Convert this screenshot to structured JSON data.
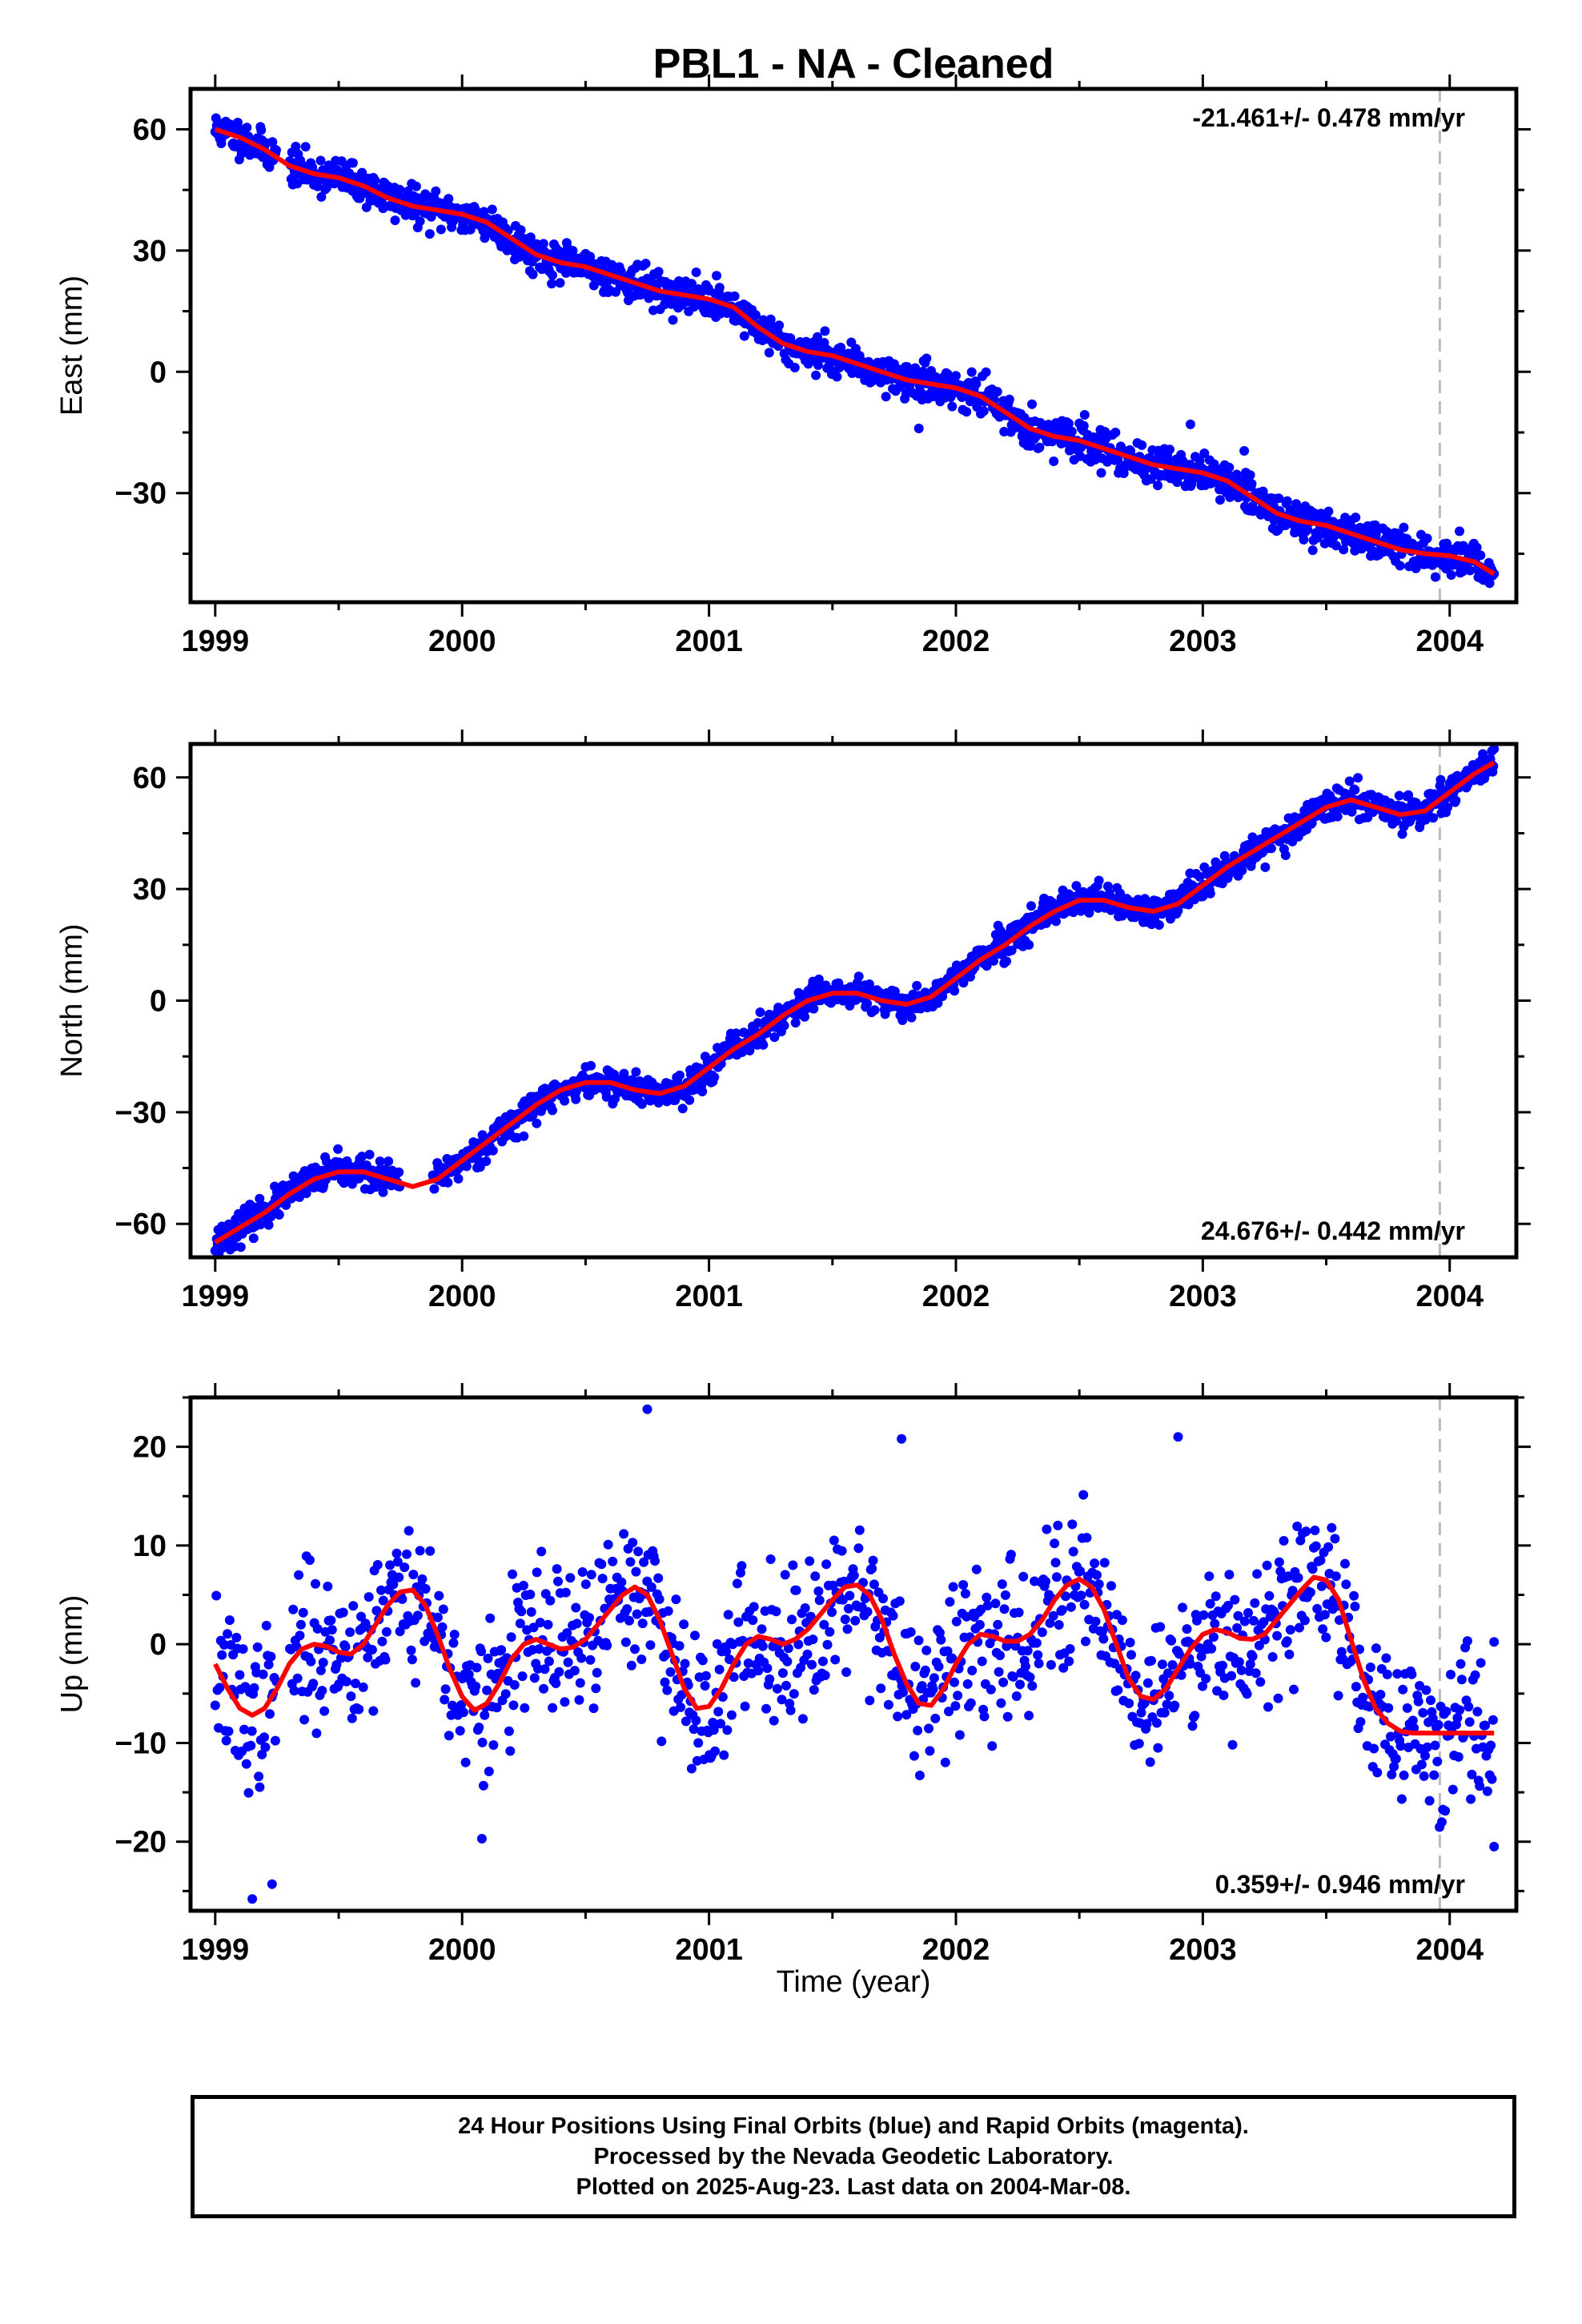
{
  "title": "PBL1  - NA - Cleaned",
  "xlabel": "Time (year)",
  "colors": {
    "points": "#0000ff",
    "fit": "#ff0000",
    "marker": "#bbbbbb",
    "axis": "#000000"
  },
  "chart_data": [
    {
      "type": "scatter",
      "panel": "East",
      "ylabel": "East (mm)",
      "xlim": [
        1998.9,
        2004.27
      ],
      "ylim": [
        -57,
        70
      ],
      "xticks": [
        1999,
        2000,
        2001,
        2002,
        2003,
        2004
      ],
      "yticks": [
        -30,
        0,
        30,
        60
      ],
      "rate_label": "-21.461+/- 0.478 mm/yr",
      "rate_label_position": "top-right",
      "vertical_marker_x": 2003.96,
      "fit_curve": {
        "x": [
          1999.0,
          1999.1,
          1999.2,
          1999.3,
          1999.4,
          1999.5,
          1999.6,
          1999.7,
          1999.8,
          1999.9,
          2000.0,
          2000.1,
          2000.2,
          2000.3,
          2000.4,
          2000.5,
          2000.6,
          2000.7,
          2000.8,
          2000.9,
          2001.0,
          2001.1,
          2001.2,
          2001.3,
          2001.4,
          2001.5,
          2001.6,
          2001.7,
          2001.8,
          2001.9,
          2002.0,
          2002.1,
          2002.2,
          2002.3,
          2002.4,
          2002.5,
          2002.6,
          2002.7,
          2002.8,
          2002.9,
          2003.0,
          2003.1,
          2003.2,
          2003.3,
          2003.4,
          2003.5,
          2003.6,
          2003.7,
          2003.8,
          2003.9,
          2004.0,
          2004.1,
          2004.18
        ],
        "y": [
          60.0,
          58.0,
          55.0,
          51.0,
          49.0,
          48.0,
          46.0,
          43.0,
          41.0,
          40.0,
          39.0,
          37.0,
          33.0,
          29.0,
          27.0,
          26.0,
          24.0,
          22.0,
          20.0,
          19.0,
          18.0,
          16.0,
          11.0,
          7.0,
          5.0,
          4.0,
          2.0,
          0.0,
          -2.0,
          -3.0,
          -4.0,
          -6.0,
          -10.0,
          -14.0,
          -16.0,
          -17.0,
          -19.0,
          -21.0,
          -23.0,
          -24.0,
          -25.0,
          -27.0,
          -31.0,
          -35.0,
          -37.0,
          -38.0,
          -40.0,
          -42.0,
          -44.0,
          -45.0,
          -45.5,
          -47.0,
          -50.0
        ]
      },
      "scatter_summary": {
        "n_points": 1700,
        "scatter_mm": 2.2,
        "seed": 11,
        "gaps": [
          [
            1999.25,
            1999.3
          ]
        ],
        "outliers": [
          [
            2002.95,
            -13.0
          ],
          [
            2001.85,
            -14.0
          ]
        ]
      }
    },
    {
      "type": "scatter",
      "panel": "North",
      "ylabel": "North (mm)",
      "xlim": [
        1998.9,
        2004.27
      ],
      "ylim": [
        -69,
        69
      ],
      "xticks": [
        1999,
        2000,
        2001,
        2002,
        2003,
        2004
      ],
      "yticks": [
        -60,
        -30,
        0,
        30,
        60
      ],
      "rate_label": "24.676+/- 0.442 mm/yr",
      "rate_label_position": "bottom-right",
      "vertical_marker_x": 2003.96,
      "fit_curve": {
        "x": [
          1999.0,
          1999.1,
          1999.2,
          1999.3,
          1999.4,
          1999.5,
          1999.6,
          1999.7,
          1999.8,
          1999.9,
          2000.0,
          2000.1,
          2000.2,
          2000.3,
          2000.4,
          2000.5,
          2000.6,
          2000.7,
          2000.8,
          2000.9,
          2001.0,
          2001.1,
          2001.2,
          2001.3,
          2001.4,
          2001.5,
          2001.6,
          2001.7,
          2001.8,
          2001.9,
          2002.0,
          2002.1,
          2002.2,
          2002.3,
          2002.4,
          2002.5,
          2002.6,
          2002.7,
          2002.8,
          2002.9,
          2003.0,
          2003.1,
          2003.2,
          2003.3,
          2003.4,
          2003.5,
          2003.6,
          2003.7,
          2003.8,
          2003.9,
          2004.0,
          2004.1,
          2004.18
        ],
        "y": [
          -65.0,
          -61.0,
          -57.0,
          -52.0,
          -48.0,
          -46.0,
          -46.0,
          -48.0,
          -50.0,
          -48.0,
          -43.0,
          -38.0,
          -33.0,
          -28.0,
          -24.0,
          -22.0,
          -22.0,
          -24.0,
          -25.0,
          -23.0,
          -18.0,
          -13.0,
          -9.0,
          -4.0,
          0.0,
          2.0,
          2.0,
          0.0,
          -1.0,
          1.0,
          6.0,
          11.0,
          15.0,
          20.0,
          24.0,
          27.0,
          27.0,
          25.0,
          24.0,
          26.0,
          31.0,
          36.0,
          40.0,
          44.0,
          48.0,
          52.0,
          54.0,
          52.0,
          50.0,
          51.0,
          56.0,
          61.0,
          64.0
        ]
      },
      "scatter_summary": {
        "n_points": 1700,
        "scatter_mm": 2.0,
        "seed": 23,
        "gaps": [
          [
            1999.75,
            1999.88
          ]
        ],
        "outliers": []
      }
    },
    {
      "type": "scatter",
      "panel": "Up",
      "ylabel": "Up (mm)",
      "xlim": [
        1998.9,
        2004.27
      ],
      "ylim": [
        -27,
        25
      ],
      "xticks": [
        1999,
        2000,
        2001,
        2002,
        2003,
        2004
      ],
      "yticks": [
        -20,
        -10,
        0,
        10,
        20
      ],
      "rate_label": "0.359+/- 0.946 mm/yr",
      "rate_label_position": "bottom-right",
      "vertical_marker_x": 2003.96,
      "fit_curve": {
        "x": [
          1999.0,
          1999.05,
          1999.1,
          1999.15,
          1999.2,
          1999.25,
          1999.3,
          1999.35,
          1999.4,
          1999.45,
          1999.5,
          1999.55,
          1999.6,
          1999.65,
          1999.7,
          1999.75,
          1999.8,
          1999.85,
          1999.9,
          1999.95,
          2000.0,
          2000.05,
          2000.1,
          2000.15,
          2000.2,
          2000.25,
          2000.3,
          2000.35,
          2000.4,
          2000.45,
          2000.5,
          2000.55,
          2000.6,
          2000.65,
          2000.7,
          2000.75,
          2000.8,
          2000.85,
          2000.9,
          2000.95,
          2001.0,
          2001.05,
          2001.1,
          2001.15,
          2001.2,
          2001.25,
          2001.3,
          2001.35,
          2001.4,
          2001.45,
          2001.5,
          2001.55,
          2001.6,
          2001.65,
          2001.7,
          2001.75,
          2001.8,
          2001.85,
          2001.9,
          2001.95,
          2002.0,
          2002.05,
          2002.1,
          2002.15,
          2002.2,
          2002.25,
          2002.3,
          2002.35,
          2002.4,
          2002.45,
          2002.5,
          2002.55,
          2002.6,
          2002.65,
          2002.7,
          2002.75,
          2002.8,
          2002.85,
          2002.9,
          2002.95,
          2003.0,
          2003.05,
          2003.1,
          2003.15,
          2003.2,
          2003.25,
          2003.3,
          2003.35,
          2003.4,
          2003.45,
          2003.5,
          2003.55,
          2003.6,
          2003.65,
          2003.7,
          2003.75,
          2003.8,
          2003.85,
          2003.9,
          2003.95,
          2004.0,
          2004.05,
          2004.1,
          2004.15,
          2004.18
        ],
        "y": [
          -2.0,
          -4.5,
          -6.5,
          -7.2,
          -6.5,
          -4.5,
          -2.0,
          -0.5,
          0.0,
          -0.2,
          -0.8,
          -1.0,
          0.0,
          2.0,
          4.0,
          5.3,
          5.5,
          4.0,
          1.0,
          -2.5,
          -5.3,
          -6.7,
          -6.0,
          -4.0,
          -1.5,
          0.0,
          0.5,
          0.0,
          -0.5,
          -0.3,
          0.5,
          2.0,
          3.5,
          5.0,
          5.8,
          5.0,
          2.5,
          -1.0,
          -4.5,
          -6.5,
          -6.3,
          -4.5,
          -2.0,
          0.0,
          0.8,
          0.5,
          0.0,
          0.5,
          1.5,
          3.0,
          4.5,
          5.8,
          6.0,
          5.0,
          2.5,
          -1.0,
          -4.0,
          -6.0,
          -6.2,
          -4.5,
          -2.0,
          0.0,
          1.0,
          0.8,
          0.3,
          0.3,
          1.0,
          2.5,
          4.5,
          6.0,
          6.6,
          5.8,
          3.5,
          0.0,
          -3.5,
          -5.3,
          -5.6,
          -4.5,
          -2.5,
          -0.5,
          1.0,
          1.5,
          1.2,
          0.6,
          0.5,
          1.0,
          2.5,
          4.0,
          5.5,
          6.8,
          6.5,
          4.5,
          0.5,
          -3.5,
          -6.5,
          -8.0,
          -8.8,
          -9.0,
          -9.0,
          -9.0,
          -9.0,
          -9.0,
          -9.0,
          -9.0,
          -9.0
        ]
      },
      "scatter_summary": {
        "n_points": 1150,
        "scatter_mm": 3.8,
        "seed": 37,
        "gaps": [
          [
            1999.25,
            1999.3
          ]
        ],
        "outliers": [
          [
            1999.15,
            -25.8
          ],
          [
            1999.23,
            -24.3
          ],
          [
            2000.08,
            -19.7
          ],
          [
            2004.18,
            -20.5
          ],
          [
            2000.75,
            23.8
          ],
          [
            2001.78,
            20.8
          ],
          [
            2002.9,
            21.0
          ]
        ]
      }
    }
  ],
  "footer": {
    "line1": "24 Hour Positions Using Final Orbits (blue) and Rapid Orbits (magenta).",
    "line2": "Processed by the Nevada Geodetic Laboratory.",
    "line3": "Plotted on 2025-Aug-23. Last data on 2004-Mar-08."
  }
}
